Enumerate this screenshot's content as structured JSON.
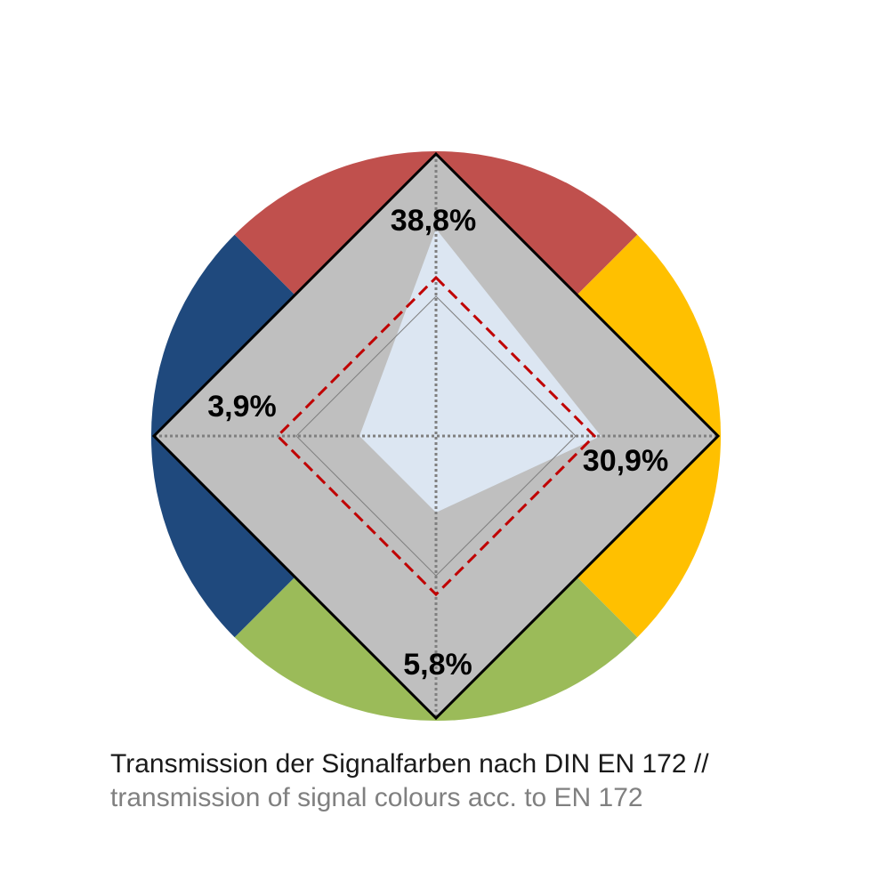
{
  "chart_data": {
    "type": "radar",
    "axes": [
      {
        "color_name": "red",
        "value": 38.8,
        "label": "38,8%"
      },
      {
        "color_name": "yellow",
        "value": 30.9,
        "label": "30,9%"
      },
      {
        "color_name": "green",
        "value": 5.8,
        "label": "5,8%"
      },
      {
        "color_name": "blue",
        "value": 3.9,
        "label": "3,9%"
      }
    ],
    "sector_colors": {
      "red": "#c0504d",
      "yellow": "#ffc000",
      "green": "#9bbb59",
      "blue": "#1f497d"
    },
    "band_color": "#bfbfbf",
    "area_color": "#dce6f2",
    "threshold_line_color": "#c00000",
    "gridlines": "dotted"
  },
  "caption": {
    "line1": "Transmission der Signalfarben nach DIN EN 172 //",
    "line2": "transmission of signal colours acc. to EN 172"
  }
}
